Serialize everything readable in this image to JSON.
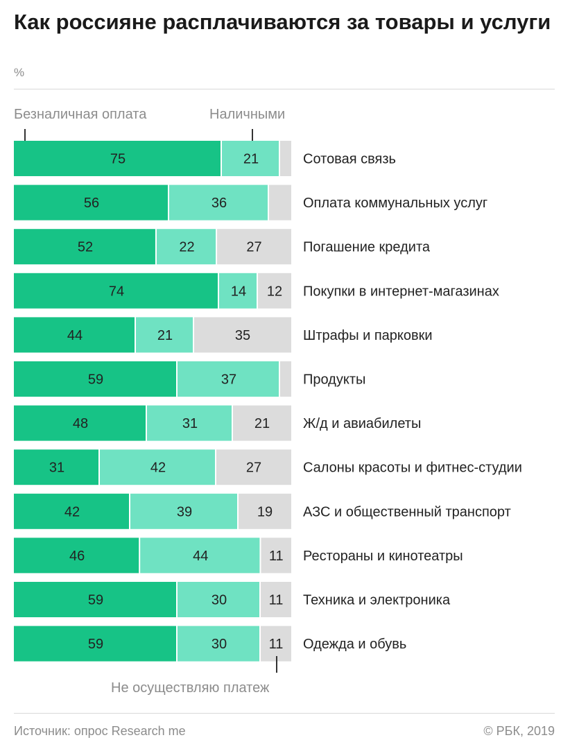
{
  "title": "Как россияне расплачиваются за товары и услуги",
  "unit": "%",
  "legend": {
    "cashless": "Безналичная оплата",
    "cash": "Наличными",
    "none": "Не осуществляю платеж"
  },
  "colors": {
    "cashless": "#17c386",
    "cash": "#6fe2c2",
    "none": "#dcdcdc"
  },
  "source": "Источник: опрос Research me",
  "copyright": "© РБК, 2019",
  "chart_data": {
    "type": "bar",
    "orientation": "horizontal",
    "stacked": true,
    "unit": "%",
    "categories": [
      "Сотовая связь",
      "Оплата коммунальных услуг",
      "Погашение кредита",
      "Покупки в интернет-магазинах",
      "Штрафы и парковки",
      "Продукты",
      "Ж/д и авиабилеты",
      "Салоны красоты и фитнес-студии",
      "АЗС и общественный транспорт",
      "Рестораны и кинотеатры",
      "Техника и электроника",
      "Одежда и обувь"
    ],
    "series": [
      {
        "name": "Безналичная оплата",
        "values": [
          75,
          56,
          52,
          74,
          44,
          59,
          48,
          31,
          42,
          46,
          59,
          59
        ]
      },
      {
        "name": "Наличными",
        "values": [
          21,
          36,
          22,
          14,
          21,
          37,
          31,
          42,
          39,
          44,
          30,
          30
        ]
      },
      {
        "name": "Не осуществляю платеж",
        "values": [
          4,
          8,
          27,
          12,
          35,
          4,
          21,
          27,
          19,
          11,
          11,
          11
        ]
      }
    ],
    "value_labels_hidden_below": 10,
    "xlim": [
      0,
      100
    ]
  }
}
